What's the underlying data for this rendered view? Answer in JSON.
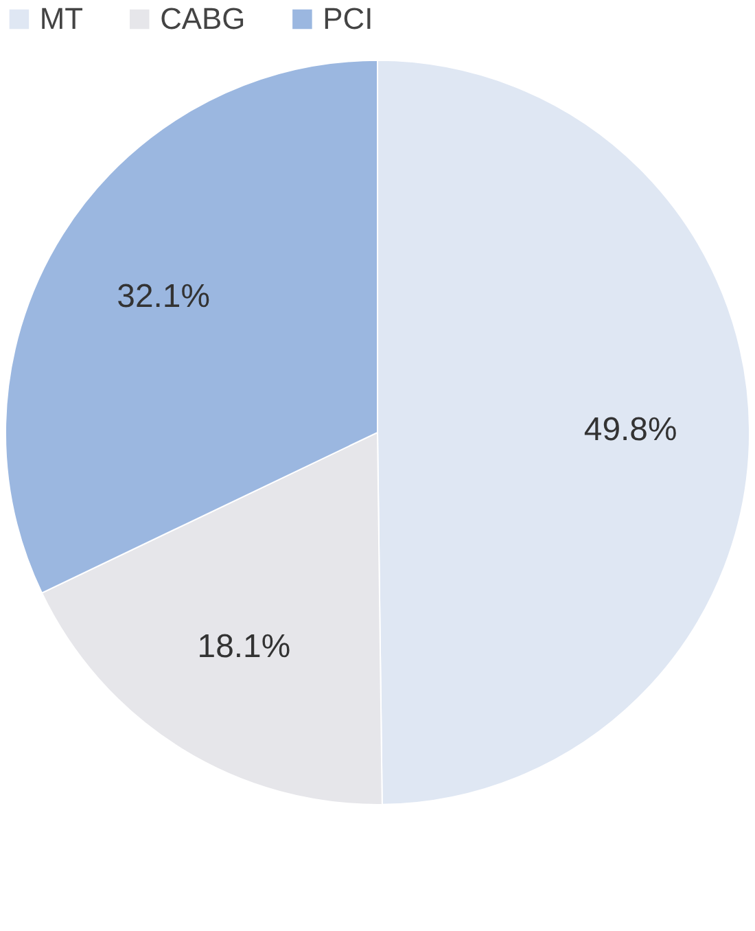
{
  "chart_data": {
    "type": "pie",
    "categories": [
      "MT",
      "CABG",
      "PCI"
    ],
    "values": [
      49.8,
      18.1,
      32.1
    ],
    "colors": [
      "#dfe7f3",
      "#e6e6ea",
      "#9bb7e0"
    ],
    "value_labels": [
      "49.8%",
      "18.1%",
      "32.1%"
    ],
    "legend": "top"
  }
}
